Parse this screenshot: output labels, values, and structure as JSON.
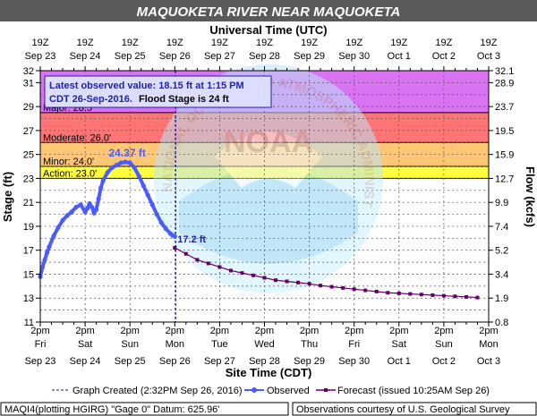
{
  "title": "MAQUOKETA RIVER NEAR MAQUOKETA",
  "top_axis_title": "Universal Time (UTC)",
  "bottom_axis_title": "Site Time (CDT)",
  "left_axis_title": "Stage (ft)",
  "right_axis_title": "Flow (kcfs)",
  "top_ticks": [
    {
      "time": "19Z",
      "date": "Sep 23"
    },
    {
      "time": "19Z",
      "date": "Sep 24"
    },
    {
      "time": "19Z",
      "date": "Sep 25"
    },
    {
      "time": "19Z",
      "date": "Sep 26"
    },
    {
      "time": "19Z",
      "date": "Sep 27"
    },
    {
      "time": "19Z",
      "date": "Sep 28"
    },
    {
      "time": "19Z",
      "date": "Sep 29"
    },
    {
      "time": "19Z",
      "date": "Sep 30"
    },
    {
      "time": "19Z",
      "date": "Oct 1"
    },
    {
      "time": "19Z",
      "date": "Oct 2"
    },
    {
      "time": "19Z",
      "date": "Oct 3"
    }
  ],
  "bottom_ticks": [
    {
      "time": "2pm",
      "day": "Fri",
      "date": "Sep 23"
    },
    {
      "time": "2pm",
      "day": "Sat",
      "date": "Sep 24"
    },
    {
      "time": "2pm",
      "day": "Sun",
      "date": "Sep 25"
    },
    {
      "time": "2pm",
      "day": "Mon",
      "date": "Sep 26"
    },
    {
      "time": "2pm",
      "day": "Tue",
      "date": "Sep 27"
    },
    {
      "time": "2pm",
      "day": "Wed",
      "date": "Sep 28"
    },
    {
      "time": "2pm",
      "day": "Thu",
      "date": "Sep 29"
    },
    {
      "time": "2pm",
      "day": "Fri",
      "date": "Sep 30"
    },
    {
      "time": "2pm",
      "day": "Sat",
      "date": "Oct 1"
    },
    {
      "time": "2pm",
      "day": "Sun",
      "date": "Oct 2"
    },
    {
      "time": "2pm",
      "day": "Mon",
      "date": "Oct 3"
    }
  ],
  "stage_ticks": [
    "11",
    "13",
    "15",
    "17",
    "19",
    "21",
    "23",
    "25",
    "27",
    "29",
    "31",
    "32"
  ],
  "flow_ticks": [
    {
      "stage": 11,
      "label": "0.8"
    },
    {
      "stage": 13,
      "label": "1.9"
    },
    {
      "stage": 15,
      "label": "3.4"
    },
    {
      "stage": 17,
      "label": "5.2"
    },
    {
      "stage": 19,
      "label": "7.4"
    },
    {
      "stage": 21,
      "label": "9.9"
    },
    {
      "stage": 23,
      "label": "12.7"
    },
    {
      "stage": 25,
      "label": "15.9"
    },
    {
      "stage": 27,
      "label": "19.5"
    },
    {
      "stage": 29,
      "label": "23.7"
    },
    {
      "stage": 31,
      "label": "28.9"
    },
    {
      "stage": 32,
      "label": "32.1"
    }
  ],
  "flood_bands": [
    {
      "name": "Action",
      "label": "Action: 23.0'",
      "from": 23,
      "to": 24,
      "color": "#ffff00"
    },
    {
      "name": "Minor",
      "label": "Minor: 24.0'",
      "from": 24,
      "to": 26,
      "color": "#ffb347"
    },
    {
      "name": "Moderate",
      "label": "Moderate: 26.0'",
      "from": 26,
      "to": 28.5,
      "color": "#ff4747"
    },
    {
      "name": "Major",
      "label": "Major: 28.5'",
      "from": 28.5,
      "to": 32,
      "color": "#cc44ee"
    }
  ],
  "observation_box": {
    "line1": "Latest observed value: 18.15 ft at 1:15 PM",
    "line2a": "CDT 26-Sep-2016.",
    "line2b": "Flood Stage is 24 ft"
  },
  "peak_label": "24.37 ft",
  "forecast_start_label": "17.2 ft",
  "legend": {
    "created": "Graph Created (2:32PM Sep 26, 2016)",
    "observed": "Observed",
    "forecast": "Forecast (issued 10:25AM Sep 26)"
  },
  "footer_left": "MAQI4(plotting HGIRG) \"Gage 0\" Datum: 625.96'",
  "footer_right": "Observations courtesy of U.S. Geological Survey",
  "watermark_text": "NATIONAL OCEANIC AND ATMOSPHERIC ADMINISTRATION  U.S. DEPARTMENT OF COMMERCE",
  "colors": {
    "observed": "#4a5cff",
    "forecast": "#660066",
    "plot_background": "#ffffff",
    "title_bar": "#5a5a5a",
    "title_text": "#ffffff",
    "box_text": "#2222aa"
  },
  "chart_data": {
    "type": "line",
    "x_unit": "days after 2pm CDT Sep 23, 2016",
    "xlim": [
      0,
      10
    ],
    "ylim": [
      11,
      32
    ],
    "graph_created_x": 3.02,
    "series": [
      {
        "name": "Observed",
        "x": [
          0,
          0.05,
          0.1,
          0.15,
          0.2,
          0.3,
          0.4,
          0.5,
          0.6,
          0.7,
          0.8,
          0.9,
          1.0,
          1.05,
          1.1,
          1.15,
          1.2,
          1.25,
          1.3,
          1.35,
          1.4,
          1.5,
          1.6,
          1.7,
          1.8,
          1.9,
          2.0,
          2.1,
          2.2,
          2.3,
          2.4,
          2.5,
          2.6,
          2.7,
          2.8,
          2.9,
          2.95,
          3.0
        ],
        "values": [
          14.8,
          15.6,
          16.2,
          16.8,
          17.3,
          18.2,
          18.9,
          19.5,
          19.9,
          20.2,
          20.6,
          20.8,
          20.2,
          20.5,
          20.9,
          20.6,
          20.1,
          20.4,
          21.3,
          22.2,
          22.8,
          23.5,
          23.9,
          24.1,
          24.3,
          24.37,
          24.3,
          23.9,
          23.2,
          22.4,
          21.6,
          20.8,
          20.0,
          19.3,
          18.8,
          18.4,
          18.25,
          18.15
        ]
      },
      {
        "name": "Forecast",
        "x": [
          3.0,
          3.25,
          3.5,
          3.75,
          4.0,
          4.25,
          4.5,
          4.75,
          5.0,
          5.25,
          5.5,
          5.75,
          6.0,
          6.25,
          6.5,
          6.75,
          7.0,
          7.25,
          7.5,
          7.75,
          8.0,
          8.25,
          8.5,
          8.75,
          9.0,
          9.25,
          9.5,
          9.75
        ],
        "values": [
          17.2,
          16.7,
          16.2,
          15.9,
          15.6,
          15.3,
          15.1,
          14.9,
          14.7,
          14.5,
          14.4,
          14.3,
          14.2,
          14.05,
          13.95,
          13.85,
          13.75,
          13.65,
          13.55,
          13.45,
          13.4,
          13.35,
          13.3,
          13.25,
          13.2,
          13.15,
          13.1,
          13.05
        ]
      }
    ]
  }
}
